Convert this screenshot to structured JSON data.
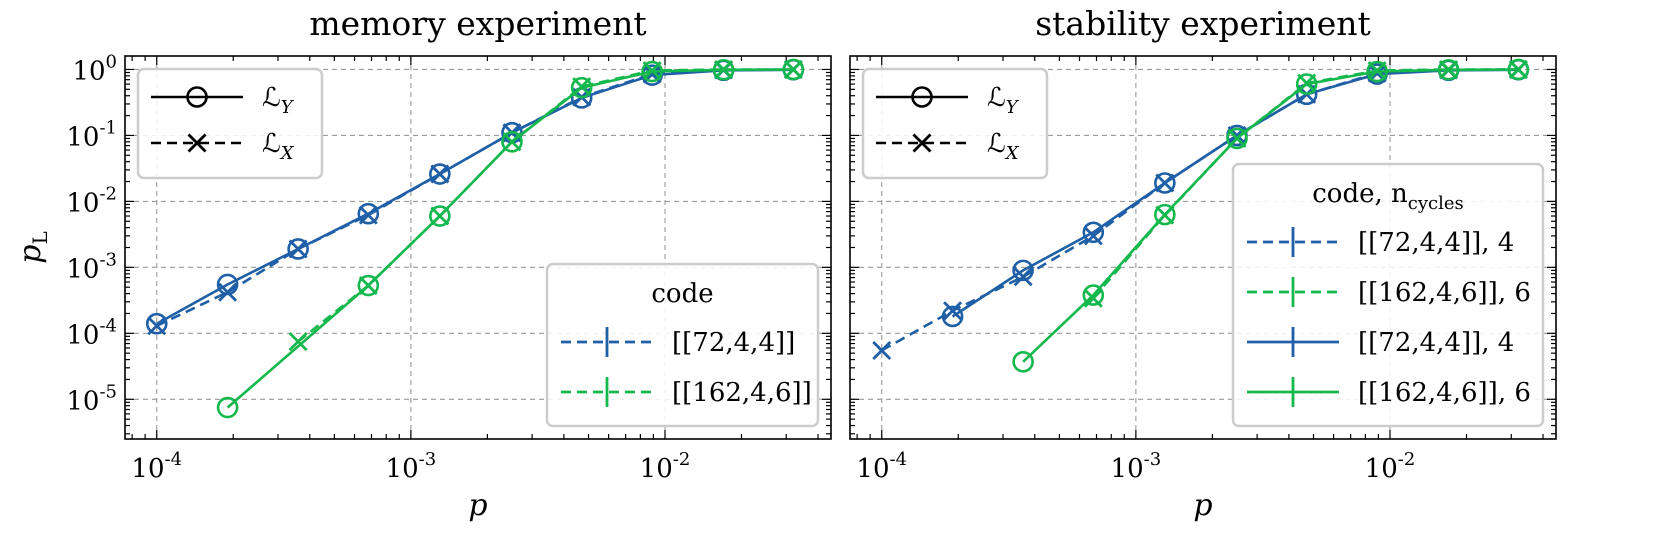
{
  "colors": {
    "blue": "#1f5fa6",
    "green": "#14b84c",
    "black": "#000000"
  },
  "chart_data": [
    {
      "type": "line",
      "title": "memory experiment",
      "xlabel": "p",
      "ylabel": "p_L",
      "xscale": "log",
      "yscale": "log",
      "xlim": [
        7.5e-05,
        0.045
      ],
      "ylim": [
        2.5e-06,
        1.6
      ],
      "grid": true,
      "xticks": [
        0.0001,
        0.001,
        0.01
      ],
      "xtick_labels": [
        "10^-4",
        "10^-3",
        "10^-2"
      ],
      "yticks": [
        1,
        0.1,
        0.01,
        0.001,
        0.0001,
        1e-05
      ],
      "ytick_labels": [
        "10^0",
        "10^-1",
        "10^-2",
        "10^-3",
        "10^-4",
        "10^-5"
      ],
      "marker_legend": {
        "position": "top-left",
        "entries": [
          {
            "marker": "circle",
            "style": "solid",
            "label": "ℒ",
            "sub": "Y"
          },
          {
            "marker": "x",
            "style": "dashed",
            "label": "ℒ",
            "sub": "X"
          }
        ]
      },
      "code_legend": {
        "position": "bottom-right",
        "title": "code",
        "title_sub": "",
        "entries": [
          {
            "label": "[[72,4,4]]",
            "color": "blue",
            "style": "dashed"
          },
          {
            "label": "[[162,4,6]]",
            "color": "green",
            "style": "dashed"
          }
        ]
      },
      "series": [
        {
          "code": "[[72,4,4]]",
          "logical": "L_Y",
          "color": "blue",
          "style": "solid",
          "marker": "circle",
          "points": [
            [
              0.0001,
              0.00014
            ],
            [
              0.00019,
              0.00055
            ],
            [
              0.00036,
              0.0019
            ],
            [
              0.00068,
              0.0065
            ],
            [
              0.0013,
              0.026
            ],
            [
              0.0025,
              0.11
            ],
            [
              0.0047,
              0.37
            ],
            [
              0.0089,
              0.82
            ],
            [
              0.017,
              0.97
            ],
            [
              0.032,
              0.99
            ]
          ]
        },
        {
          "code": "[[72,4,4]]",
          "logical": "L_X",
          "color": "blue",
          "style": "dashed",
          "marker": "x",
          "points": [
            [
              0.0001,
              0.00013
            ],
            [
              0.00019,
              0.00042
            ],
            [
              0.00036,
              0.0019
            ],
            [
              0.00068,
              0.0062
            ],
            [
              0.0013,
              0.026
            ],
            [
              0.0025,
              0.11
            ],
            [
              0.0047,
              0.38
            ],
            [
              0.0089,
              0.85
            ],
            [
              0.017,
              0.98
            ],
            [
              0.032,
              1.0
            ]
          ]
        },
        {
          "code": "[[162,4,6]]",
          "logical": "L_Y",
          "color": "green",
          "style": "solid",
          "marker": "circle",
          "points": [
            [
              0.00019,
              7.5e-06
            ],
            [
              0.00068,
              0.00053
            ],
            [
              0.0013,
              0.006
            ],
            [
              0.0025,
              0.08
            ],
            [
              0.0047,
              0.53
            ],
            [
              0.0089,
              0.93
            ],
            [
              0.017,
              0.99
            ],
            [
              0.032,
              1.0
            ]
          ]
        },
        {
          "code": "[[162,4,6]]",
          "logical": "L_X",
          "color": "green",
          "style": "dashed",
          "marker": "x",
          "points": [
            [
              0.00036,
              7.5e-05
            ],
            [
              0.00068,
              0.00053
            ],
            [
              0.0013,
              0.006
            ],
            [
              0.0025,
              0.08
            ],
            [
              0.0047,
              0.55
            ],
            [
              0.0089,
              0.96
            ],
            [
              0.017,
              1.0
            ],
            [
              0.032,
              1.0
            ]
          ]
        }
      ]
    },
    {
      "type": "line",
      "title": "stability experiment",
      "xlabel": "p",
      "ylabel": "",
      "xscale": "log",
      "yscale": "log",
      "xlim": [
        7.5e-05,
        0.045
      ],
      "ylim": [
        2.5e-06,
        1.6
      ],
      "grid": true,
      "xticks": [
        0.0001,
        0.001,
        0.01
      ],
      "xtick_labels": [
        "10^-4",
        "10^-3",
        "10^-2"
      ],
      "yticks": [
        1,
        0.1,
        0.01,
        0.001,
        0.0001,
        1e-05
      ],
      "ytick_labels": [],
      "marker_legend": {
        "position": "top-left",
        "entries": [
          {
            "marker": "circle",
            "style": "solid",
            "label": "ℒ",
            "sub": "Y"
          },
          {
            "marker": "x",
            "style": "dashed",
            "label": "ℒ",
            "sub": "X"
          }
        ]
      },
      "code_legend": {
        "position": "bottom-right",
        "title": "code, n",
        "title_sub": "cycles",
        "entries": [
          {
            "label": "[[72,4,4]], 4",
            "color": "blue",
            "style": "dashed"
          },
          {
            "label": "[[162,4,6]], 6",
            "color": "green",
            "style": "dashed"
          },
          {
            "label": "[[72,4,4]], 4",
            "color": "blue",
            "style": "solid"
          },
          {
            "label": "[[162,4,6]], 6",
            "color": "green",
            "style": "solid"
          }
        ]
      },
      "series": [
        {
          "code": "[[72,4,4]]",
          "logical": "L_Y",
          "color": "blue",
          "style": "solid",
          "marker": "circle",
          "points": [
            [
              0.00019,
              0.00018
            ],
            [
              0.00036,
              0.0009
            ],
            [
              0.00068,
              0.0034
            ],
            [
              0.0013,
              0.019
            ],
            [
              0.0025,
              0.1
            ],
            [
              0.0047,
              0.42
            ],
            [
              0.0089,
              0.85
            ],
            [
              0.017,
              0.97
            ],
            [
              0.032,
              0.99
            ]
          ]
        },
        {
          "code": "[[72,4,4]]",
          "logical": "L_X",
          "color": "blue",
          "style": "dashed",
          "marker": "x",
          "points": [
            [
              0.0001,
              5.5e-05
            ],
            [
              0.00019,
              0.00022
            ],
            [
              0.00036,
              0.00072
            ],
            [
              0.00068,
              0.003
            ],
            [
              0.0013,
              0.019
            ],
            [
              0.0025,
              0.1
            ],
            [
              0.0047,
              0.42
            ],
            [
              0.0089,
              0.88
            ],
            [
              0.017,
              0.98
            ],
            [
              0.032,
              1.0
            ]
          ]
        },
        {
          "code": "[[162,4,6]]",
          "logical": "L_Y",
          "color": "green",
          "style": "solid",
          "marker": "circle",
          "points": [
            [
              0.00036,
              3.7e-05
            ],
            [
              0.00068,
              0.00038
            ],
            [
              0.0013,
              0.0063
            ],
            [
              0.0025,
              0.09
            ],
            [
              0.0047,
              0.6
            ],
            [
              0.0089,
              0.93
            ],
            [
              0.017,
              0.99
            ],
            [
              0.032,
              1.0
            ]
          ]
        },
        {
          "code": "[[162,4,6]]",
          "logical": "L_X",
          "color": "green",
          "style": "dashed",
          "marker": "x",
          "points": [
            [
              0.00068,
              0.00034
            ],
            [
              0.0013,
              0.0062
            ],
            [
              0.0025,
              0.09
            ],
            [
              0.0047,
              0.62
            ],
            [
              0.0089,
              0.96
            ],
            [
              0.017,
              1.0
            ],
            [
              0.032,
              1.0
            ]
          ]
        }
      ]
    }
  ]
}
